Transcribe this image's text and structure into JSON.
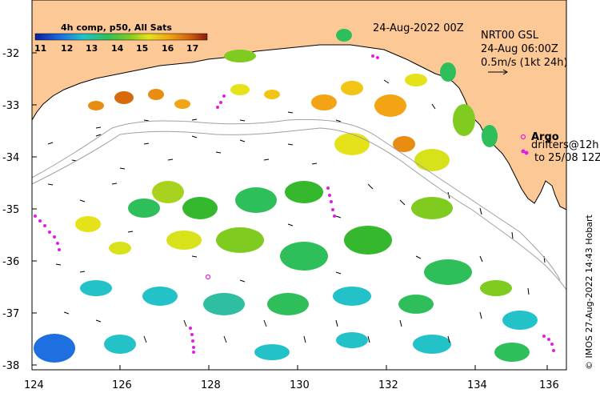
{
  "map": {
    "colorbar": {
      "title": "4h comp, p50, All Sats",
      "ticks": [
        "11",
        "12",
        "13",
        "14",
        "15",
        "16",
        "17"
      ],
      "colors": [
        "#0a1f9c",
        "#1a4fd0",
        "#1e8fe0",
        "#22c2c8",
        "#2fbf5a",
        "#35b82e",
        "#8fd01e",
        "#d8e21a",
        "#f2c414",
        "#e88c12",
        "#c8520e",
        "#a0200c"
      ]
    },
    "date_label": "24-Aug-2022 00Z",
    "legend": {
      "line1": "NRT00 GSL",
      "line2": "24-Aug 06:00Z",
      "line3": "0.5m/s (1kt 24h)"
    },
    "argo": {
      "title": "Argo",
      "line1": "drifters@12h",
      "line2": "to 25/08 12Z"
    },
    "credit": "© IMOS 27-Aug-2022 14:43 Hobart",
    "axes": {
      "x_ticks": [
        "124",
        "126",
        "128",
        "130",
        "132",
        "134",
        "136"
      ],
      "y_ticks": [
        "-32",
        "-33",
        "-34",
        "-35",
        "-36",
        "-37",
        "-38"
      ]
    },
    "colors": {
      "land": "#fcc896",
      "ocean": "#ffffff",
      "argo": "#e020e0",
      "isobath": "#a0a0a0"
    }
  }
}
